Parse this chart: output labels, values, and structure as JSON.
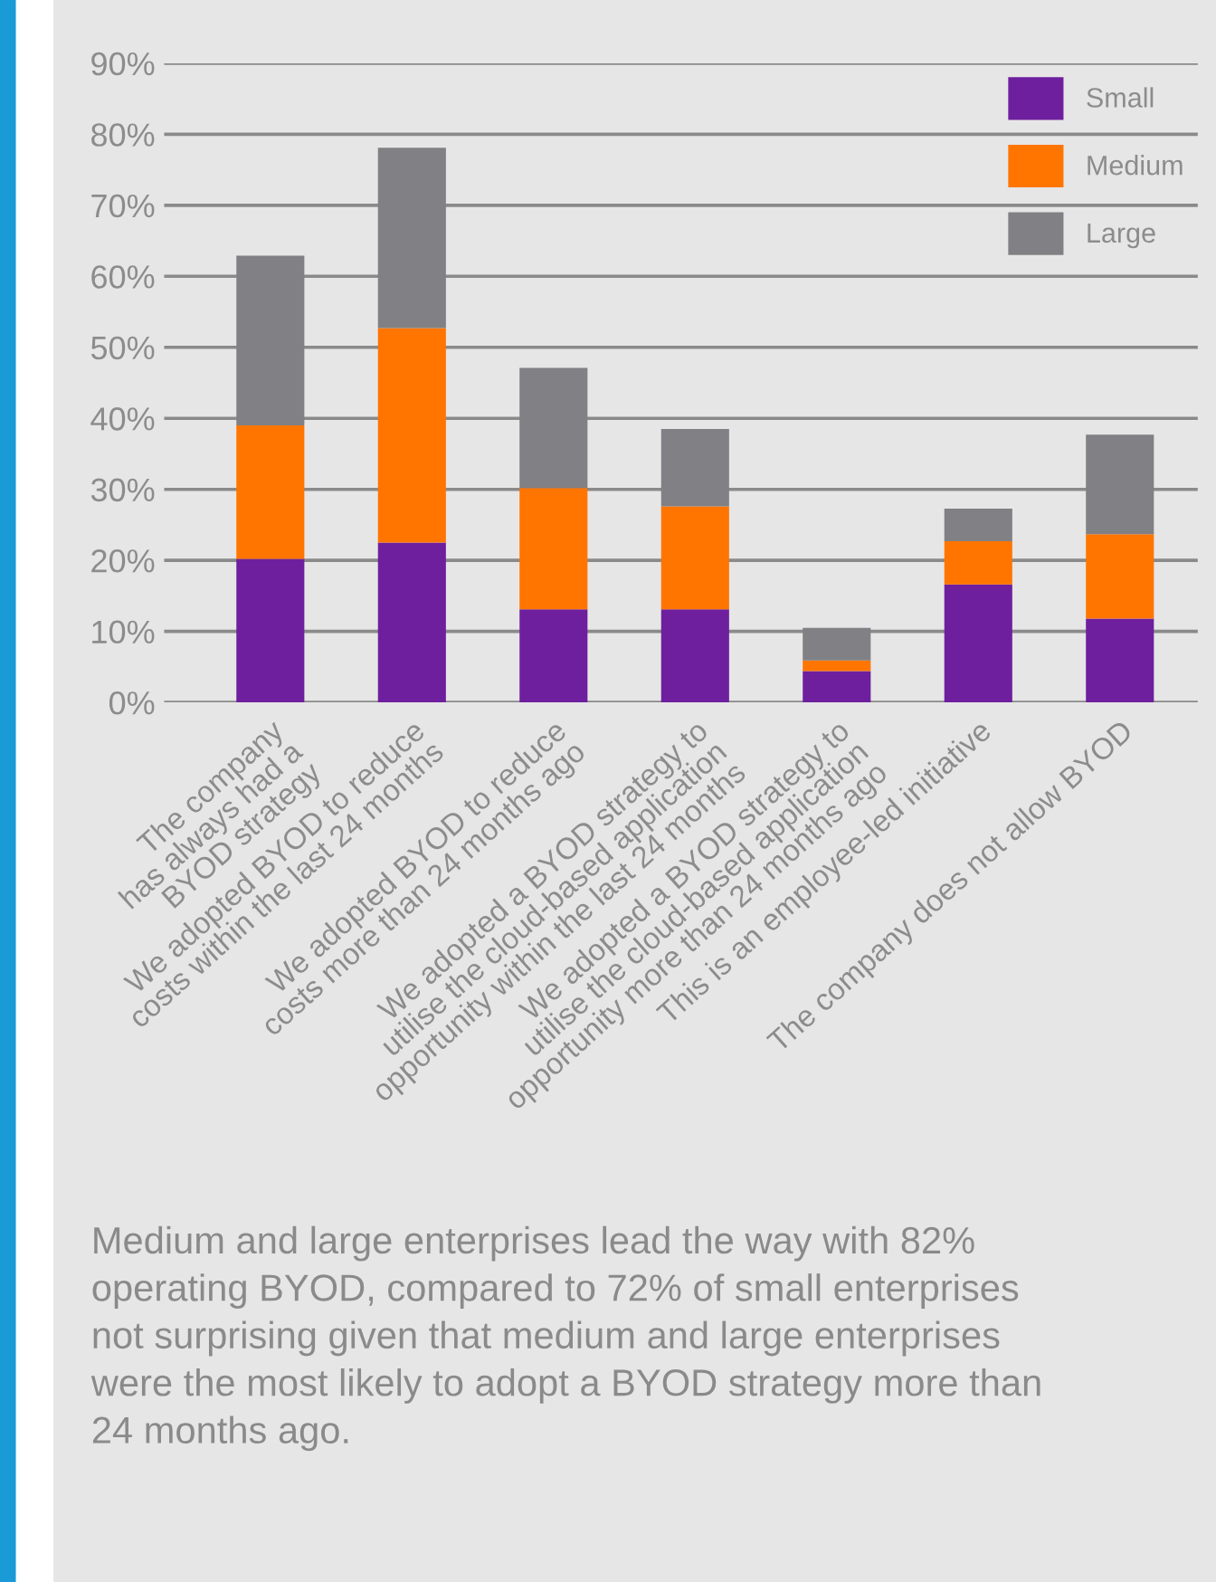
{
  "chart_data": {
    "type": "bar",
    "stacked": true,
    "categories": [
      "The company\nhas always had a\nBYOD strategy",
      "We adopted BYOD to reduce\ncosts within the last 24 months",
      "We adopted BYOD to reduce\ncosts more than 24 months ago",
      "We adopted a BYOD strategy to\nutilise the cloud-based application\nopportunity within the last 24 months",
      "We adopted a BYOD strategy to\nutilise the cloud-based application\nopportunity more than 24 months ago",
      "This is an employee-led initiative",
      "The company does not allow BYOD"
    ],
    "series": [
      {
        "name": "Small",
        "color": "#6e1f9e",
        "values": [
          20.2,
          22.5,
          13.1,
          13.1,
          4.4,
          16.6,
          11.8
        ]
      },
      {
        "name": "Medium",
        "color": "#ff7500",
        "values": [
          18.8,
          30.2,
          17.1,
          14.5,
          1.5,
          6.1,
          11.9
        ]
      },
      {
        "name": "Large",
        "color": "#808085",
        "values": [
          23.9,
          25.4,
          16.9,
          10.9,
          4.6,
          4.6,
          14.0
        ]
      }
    ],
    "ylim": [
      0,
      90
    ],
    "yticks": [
      {
        "value": 0,
        "label": "0%"
      },
      {
        "value": 10,
        "label": "10%"
      },
      {
        "value": 20,
        "label": "20%"
      },
      {
        "value": 30,
        "label": "30%"
      },
      {
        "value": 40,
        "label": "40%"
      },
      {
        "value": 50,
        "label": "50%"
      },
      {
        "value": 60,
        "label": "60%"
      },
      {
        "value": 70,
        "label": "70%"
      },
      {
        "value": 80,
        "label": "80%"
      },
      {
        "value": 90,
        "label": "90%"
      }
    ],
    "grid": "y",
    "legend": "top right",
    "annotations": [
      "Medium and large enterprises lead the way with 82%\noperating BYOD, compared to 72% of small enterprises\nnot surprising given that medium and large enterprises\nwere the most likely to adopt a BYOD strategy more than\n24 months ago."
    ]
  }
}
